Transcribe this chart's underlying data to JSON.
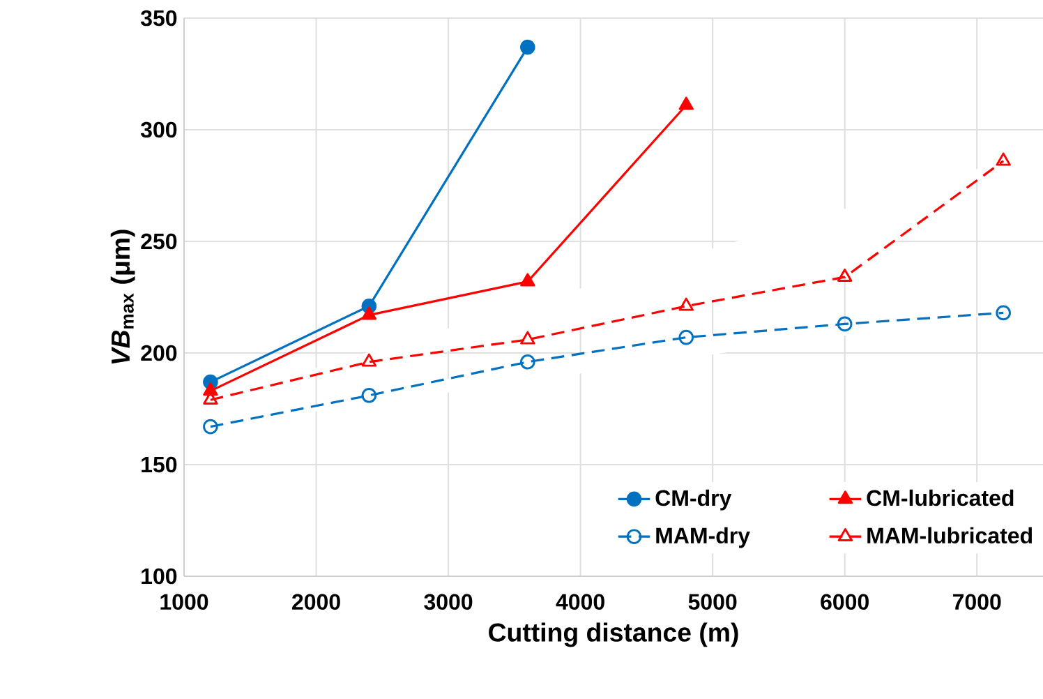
{
  "chart_data": {
    "type": "line",
    "xlabel": "Cutting distance (m)",
    "ylabel": "*VB*$_{max}$ (μm)",
    "xlim": [
      1000,
      7500
    ],
    "xticks": [
      1000,
      2000,
      3000,
      4000,
      5000,
      6000,
      7000
    ],
    "ylim": [
      100,
      350
    ],
    "yticks": [
      100,
      150,
      200,
      250,
      300,
      350
    ],
    "grid": true,
    "legend": "bottom right",
    "series": [
      {
        "name": "CM-dry",
        "color": "#0070c0",
        "marker": "circle",
        "line_style": "solid",
        "x": [
          1200,
          2400,
          3600
        ],
        "values": [
          187,
          221,
          337
        ]
      },
      {
        "name": "CM-lubricated",
        "color": "#ff0000",
        "marker": "triangle",
        "line_style": "solid",
        "x": [
          1200,
          2400,
          3600,
          4800
        ],
        "values": [
          183,
          217,
          232,
          311
        ]
      },
      {
        "name": "MAM-dry",
        "color": "#0070c0",
        "marker": "circle",
        "line_style": "dashed",
        "x": [
          1200,
          2400,
          3600,
          4800,
          6000,
          7200
        ],
        "values": [
          167,
          181,
          196,
          207,
          213,
          218
        ]
      },
      {
        "name": "MAM-lubricated",
        "color": "#ff0000",
        "marker": "triangle",
        "line_style": "dashed",
        "x": [
          1200,
          2400,
          3600,
          4800,
          6000,
          7200
        ],
        "values": [
          179,
          196,
          206,
          221,
          234,
          286
        ]
      }
    ]
  }
}
